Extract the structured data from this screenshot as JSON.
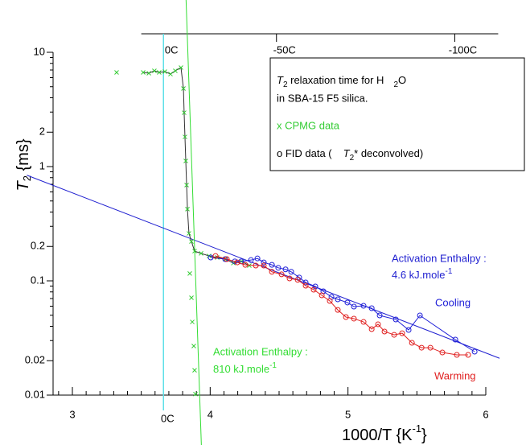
{
  "chart_data": {
    "type": "scatter",
    "ylog": true,
    "xlim": [
      2.86,
      6
    ],
    "ylim": [
      0.01,
      10
    ],
    "xticks": [
      3,
      4,
      5,
      6
    ],
    "xminor": [
      2.9,
      3.1,
      3.2,
      3.3,
      3.4,
      3.5,
      3.6,
      3.7,
      3.8,
      3.9,
      4.1,
      4.2,
      4.3,
      4.4,
      4.5,
      4.6,
      4.7,
      4.8,
      4.9,
      5.1,
      5.2,
      5.3,
      5.4,
      5.5,
      5.6,
      5.7,
      5.8,
      5.9
    ],
    "yticks": [
      10,
      2,
      1,
      0.2,
      0.1,
      0.02,
      0.01
    ],
    "yminor": [
      0.03,
      0.04,
      0.05,
      0.06,
      0.07,
      0.08,
      0.09,
      0.3,
      0.4,
      0.5,
      0.6,
      0.7,
      0.8,
      0.9,
      3,
      4,
      5,
      6,
      7,
      8,
      9
    ],
    "x2lim": [
      3.5,
      6.09
    ],
    "x2ticks": [
      {
        "value": 3.661,
        "label": "0C"
      },
      {
        "value": 4.481,
        "label": "-50C"
      },
      {
        "value": 5.775,
        "label": "-100C"
      }
    ],
    "vline": {
      "x": 3.661,
      "color": "#5fe0e8",
      "label": "0C"
    },
    "x_label": [
      "1000/T {K",
      "-1",
      "}"
    ],
    "y_label": [
      "T",
      "2",
      " {ms}"
    ],
    "legend": {
      "title": [
        "T",
        "2",
        " relaxation time for H",
        "2",
        "O"
      ],
      "title2": "in SBA-15 F5 silica.",
      "cpmg": "x  CPMG data",
      "fid": [
        "o  FID data (",
        "T",
        "2",
        "* deconvolved)"
      ]
    },
    "fits": [
      {
        "x": [
          2.67,
          6.1
        ],
        "values": [
          0.84,
          0.021
        ],
        "color": "#1f1fd0",
        "label": [
          "Activation Enthalpy :",
          "4.6 kJ.mole",
          "-1"
        ]
      },
      {
        "x": [
          3.825,
          3.936
        ],
        "values": [
          28.7,
          0.00366
        ],
        "color": "#33dd33",
        "label": [
          "Activation Enthalpy :",
          "810 kJ.mole",
          "-1"
        ]
      }
    ],
    "series": [
      {
        "marker": "x",
        "color": "#33cc33",
        "line_color": "#333333",
        "x": [
          3.514,
          3.555,
          3.595,
          3.63,
          3.671,
          3.712,
          3.747,
          3.788,
          3.806,
          3.811,
          3.817,
          3.823,
          3.829,
          3.835,
          3.846,
          3.864,
          3.887,
          3.934,
          3.992,
          4.051,
          4.109,
          4.168,
          4.226,
          4.284
        ],
        "values": [
          6.67,
          6.56,
          6.89,
          6.67,
          6.78,
          6.45,
          6.89,
          7.35,
          4.82,
          2.96,
          1.82,
          1.12,
          0.689,
          0.424,
          0.26,
          0.221,
          0.182,
          0.174,
          0.165,
          0.16,
          0.155,
          0.143,
          0.148,
          0.136
        ]
      },
      {
        "marker": "x",
        "color": "#33cc33",
        "x": [
          3.321,
          3.852,
          3.864,
          3.87,
          3.881,
          3.887,
          3.893
        ],
        "values": [
          6.67,
          0.116,
          0.0711,
          0.0437,
          0.0269,
          0.0165,
          0.0102
        ]
      },
      {
        "marker": "o",
        "color": "#2020d8",
        "line_color": "#2020d8",
        "label": "Cooling",
        "x": [
          4.004,
          4.109,
          4.179,
          4.226,
          4.296,
          4.343,
          4.389,
          4.448,
          4.494,
          4.547,
          4.588,
          4.646,
          4.693,
          4.763,
          4.821,
          4.88,
          4.926,
          4.996,
          5.043,
          5.113,
          5.172,
          5.23,
          5.347,
          5.44,
          5.522,
          5.779,
          5.919
        ],
        "values": [
          0.16,
          0.155,
          0.148,
          0.148,
          0.152,
          0.157,
          0.145,
          0.138,
          0.13,
          0.126,
          0.12,
          0.107,
          0.0968,
          0.0893,
          0.081,
          0.0723,
          0.0689,
          0.0646,
          0.0595,
          0.0605,
          0.0576,
          0.0498,
          0.0459,
          0.0372,
          0.0498,
          0.0306,
          0.024
        ]
      },
      {
        "marker": "o",
        "color": "#e02020",
        "line_color": "#e02020",
        "label": "Warming",
        "x": [
          4.039,
          4.121,
          4.197,
          4.255,
          4.331,
          4.389,
          4.448,
          4.518,
          4.576,
          4.635,
          4.693,
          4.751,
          4.81,
          4.868,
          4.926,
          4.985,
          5.043,
          5.113,
          5.172,
          5.218,
          5.265,
          5.335,
          5.393,
          5.464,
          5.534,
          5.598,
          5.685,
          5.79,
          5.872
        ],
        "values": [
          0.165,
          0.155,
          0.145,
          0.138,
          0.136,
          0.136,
          0.12,
          0.114,
          0.105,
          0.102,
          0.0907,
          0.0837,
          0.0747,
          0.0667,
          0.0557,
          0.0482,
          0.0467,
          0.0437,
          0.0378,
          0.0417,
          0.036,
          0.0337,
          0.0348,
          0.0287,
          0.026,
          0.026,
          0.0236,
          0.0225,
          0.0225
        ]
      }
    ]
  }
}
